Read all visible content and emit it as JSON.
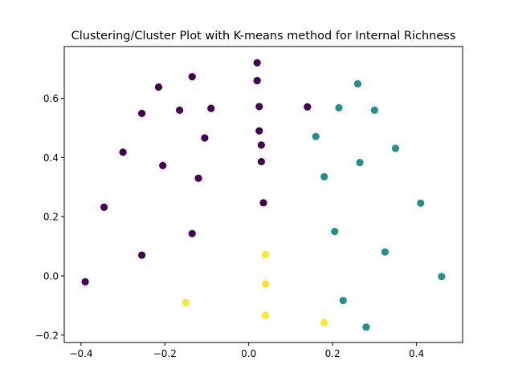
{
  "chart_data": {
    "type": "scatter",
    "title": "Clustering/Cluster Plot with K-means method for Internal Richness",
    "xlabel": "",
    "ylabel": "",
    "xlim": [
      -0.44,
      0.51
    ],
    "ylim": [
      -0.225,
      0.775
    ],
    "xticks": [
      -0.4,
      -0.2,
      0.0,
      0.2,
      0.4
    ],
    "xtick_labels": [
      "−0.4",
      "−0.2",
      "0.0",
      "0.2",
      "0.4"
    ],
    "yticks": [
      -0.2,
      0.0,
      0.2,
      0.4,
      0.6
    ],
    "ytick_labels": [
      "−0.2",
      "0.0",
      "0.2",
      "0.4",
      "0.6"
    ],
    "grid": false,
    "legend": "none",
    "colormap": "viridis",
    "series": [
      {
        "color": "#440154",
        "points": [
          [
            0.02,
            0.72
          ],
          [
            0.02,
            0.66
          ],
          [
            -0.135,
            0.673
          ],
          [
            -0.215,
            0.638
          ],
          [
            -0.255,
            0.549
          ],
          [
            -0.165,
            0.56
          ],
          [
            -0.09,
            0.566
          ],
          [
            0.025,
            0.572
          ],
          [
            0.14,
            0.571
          ],
          [
            0.025,
            0.49
          ],
          [
            -0.3,
            0.418
          ],
          [
            -0.105,
            0.466
          ],
          [
            0.03,
            0.442
          ],
          [
            -0.205,
            0.373
          ],
          [
            0.03,
            0.386
          ],
          [
            -0.12,
            0.33
          ],
          [
            0.035,
            0.247
          ],
          [
            -0.345,
            0.232
          ],
          [
            -0.135,
            0.143
          ],
          [
            -0.255,
            0.07
          ],
          [
            -0.39,
            -0.02
          ]
        ]
      },
      {
        "color": "#21918c",
        "points": [
          [
            0.26,
            0.649
          ],
          [
            0.215,
            0.568
          ],
          [
            0.3,
            0.56
          ],
          [
            0.16,
            0.471
          ],
          [
            0.35,
            0.431
          ],
          [
            0.265,
            0.383
          ],
          [
            0.18,
            0.335
          ],
          [
            0.41,
            0.246
          ],
          [
            0.205,
            0.15
          ],
          [
            0.325,
            0.081
          ],
          [
            0.46,
            -0.002
          ],
          [
            0.225,
            -0.083
          ],
          [
            0.28,
            -0.173
          ]
        ]
      },
      {
        "color": "#fde725",
        "points": [
          [
            0.04,
            0.072
          ],
          [
            0.04,
            -0.028
          ],
          [
            -0.15,
            -0.09
          ],
          [
            0.04,
            -0.133
          ],
          [
            0.18,
            -0.158
          ]
        ]
      }
    ]
  }
}
